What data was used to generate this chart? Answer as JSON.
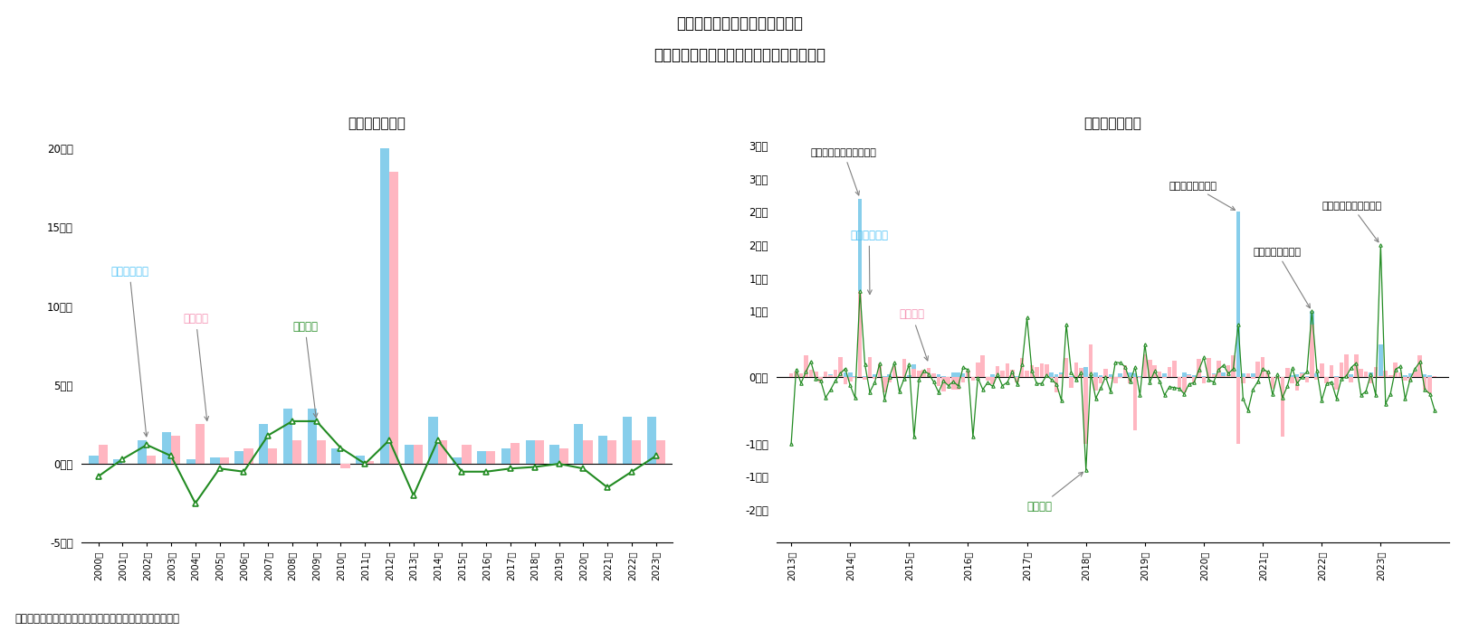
{
  "title_line1": "図表－５　横浜ビジネス地区の",
  "title_line2": "賃貸可能面積・賃貸面積・空室面積の増減",
  "subtitle_left": "＜年次・増減＞",
  "subtitle_right": "＜月次・増減＞",
  "source": "（出所）三鬼商事のデータを基にニッセイ基礎研究所作成",
  "annual_years": [
    2000,
    2001,
    2002,
    2003,
    2004,
    2005,
    2006,
    2007,
    2008,
    2009,
    2010,
    2011,
    2012,
    2013,
    2014,
    2015,
    2016,
    2017,
    2018,
    2019,
    2020,
    2021,
    2022,
    2023
  ],
  "annual_rentable": [
    0.5,
    0.3,
    1.5,
    2.0,
    0.3,
    0.4,
    0.8,
    2.5,
    3.5,
    3.5,
    1.0,
    0.5,
    20.0,
    1.2,
    3.0,
    0.4,
    0.8,
    1.0,
    1.5,
    1.2,
    2.5,
    1.8,
    3.0,
    3.0
  ],
  "annual_leased": [
    1.2,
    0.0,
    0.5,
    1.8,
    2.5,
    0.4,
    1.0,
    1.0,
    1.5,
    1.5,
    -0.3,
    0.2,
    18.5,
    1.2,
    1.5,
    1.2,
    0.8,
    1.3,
    1.5,
    1.0,
    1.5,
    1.5,
    1.5,
    1.5
  ],
  "annual_vacancy": [
    -0.8,
    0.3,
    1.2,
    0.5,
    -2.5,
    -0.3,
    -0.5,
    1.8,
    2.7,
    2.7,
    1.0,
    0.0,
    1.5,
    -2.0,
    1.5,
    -0.5,
    -0.5,
    -0.3,
    -0.2,
    0.0,
    -0.3,
    -1.5,
    -0.5,
    0.5
  ],
  "annual_ylim": [
    -5,
    21
  ],
  "annual_yticks": [
    -5,
    0,
    5,
    10,
    15,
    20
  ],
  "annual_ytick_labels": [
    "-5万坤",
    "0万坤",
    "5万坤",
    "10万坤",
    "15万坤",
    "20万坤"
  ],
  "bar_rentable_color": "#87CEEB",
  "bar_leased_color": "#FFB6C1",
  "line_vacancy_color": "#228B22",
  "label_rentable_color": "#4FC3F7",
  "label_leased_color": "#F48FB1",
  "label_vacancy_color": "#228B22",
  "label_rentable": "賃貸可能面積",
  "label_leased": "賃貸面積",
  "label_vacancy": "空室面積",
  "ann_imark": "横浜アイマークプレイス",
  "ann_gran": "横浜グランゲート",
  "ann_connect": "横浜コネクトスクエア",
  "ann_gate": "横濱ゲートタワー",
  "monthly_ylim_lo": -2.5,
  "monthly_ylim_hi": 3.7,
  "background_color": "#FFFFFF"
}
